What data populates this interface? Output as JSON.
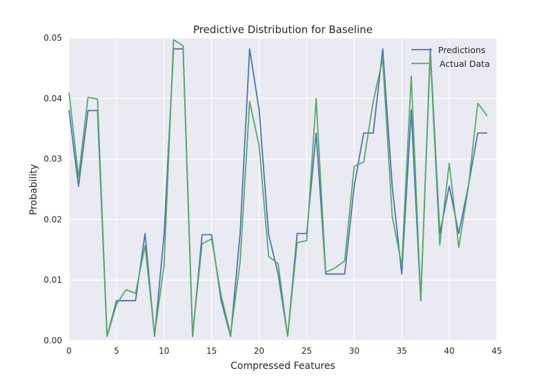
{
  "chart_data": {
    "type": "line",
    "title": "Predictive Distribution for Baseline",
    "xlabel": "Compressed Features",
    "ylabel": "Probability",
    "xlim": [
      0,
      45
    ],
    "ylim": [
      0,
      0.05
    ],
    "xticks": [
      0,
      5,
      10,
      15,
      20,
      25,
      30,
      35,
      40,
      45
    ],
    "xtick_labels": [
      "0",
      "5",
      "10",
      "15",
      "20",
      "25",
      "30",
      "35",
      "40",
      "45"
    ],
    "yticks": [
      0,
      0.01,
      0.02,
      0.03,
      0.04,
      0.05
    ],
    "ytick_labels": [
      "0.00",
      "0.01",
      "0.02",
      "0.03",
      "0.04",
      "0.05"
    ],
    "grid": true,
    "legend_position": "top-right",
    "x": [
      0,
      1,
      2,
      3,
      4,
      5,
      6,
      7,
      8,
      9,
      10,
      11,
      12,
      13,
      14,
      15,
      16,
      17,
      18,
      19,
      20,
      21,
      22,
      23,
      24,
      25,
      26,
      27,
      28,
      29,
      30,
      31,
      32,
      33,
      34,
      35,
      36,
      37,
      38,
      39,
      40,
      41,
      42,
      43,
      44
    ],
    "series": [
      {
        "name": "Predictions",
        "color": "#4c72b0",
        "values": [
          0.0381,
          0.0255,
          0.038,
          0.038,
          0.0007,
          0.0066,
          0.0066,
          0.0066,
          0.0177,
          0.0007,
          0.0175,
          0.0482,
          0.0482,
          0.0007,
          0.0175,
          0.0175,
          0.0066,
          0.0007,
          0.0177,
          0.0482,
          0.0381,
          0.0175,
          0.011,
          0.0007,
          0.0177,
          0.0177,
          0.0343,
          0.011,
          0.011,
          0.011,
          0.0255,
          0.0343,
          0.0343,
          0.0482,
          0.0255,
          0.011,
          0.0381,
          0.0066,
          0.0482,
          0.0177,
          0.0255,
          0.0177,
          0.0255,
          0.0343,
          0.0343
        ]
      },
      {
        "name": "Actual Data",
        "color": "#55a868",
        "values": [
          0.041,
          0.027,
          0.0402,
          0.0399,
          0.0007,
          0.006,
          0.0084,
          0.0078,
          0.0157,
          0.001,
          0.0124,
          0.0497,
          0.0487,
          0.001,
          0.016,
          0.0168,
          0.0075,
          0.001,
          0.013,
          0.0395,
          0.0322,
          0.0139,
          0.0127,
          0.0007,
          0.0162,
          0.0165,
          0.04,
          0.0113,
          0.012,
          0.0132,
          0.0288,
          0.0295,
          0.0395,
          0.0465,
          0.0205,
          0.0125,
          0.0437,
          0.0068,
          0.0475,
          0.0158,
          0.0293,
          0.0154,
          0.0253,
          0.0392,
          0.0371
        ]
      }
    ]
  }
}
